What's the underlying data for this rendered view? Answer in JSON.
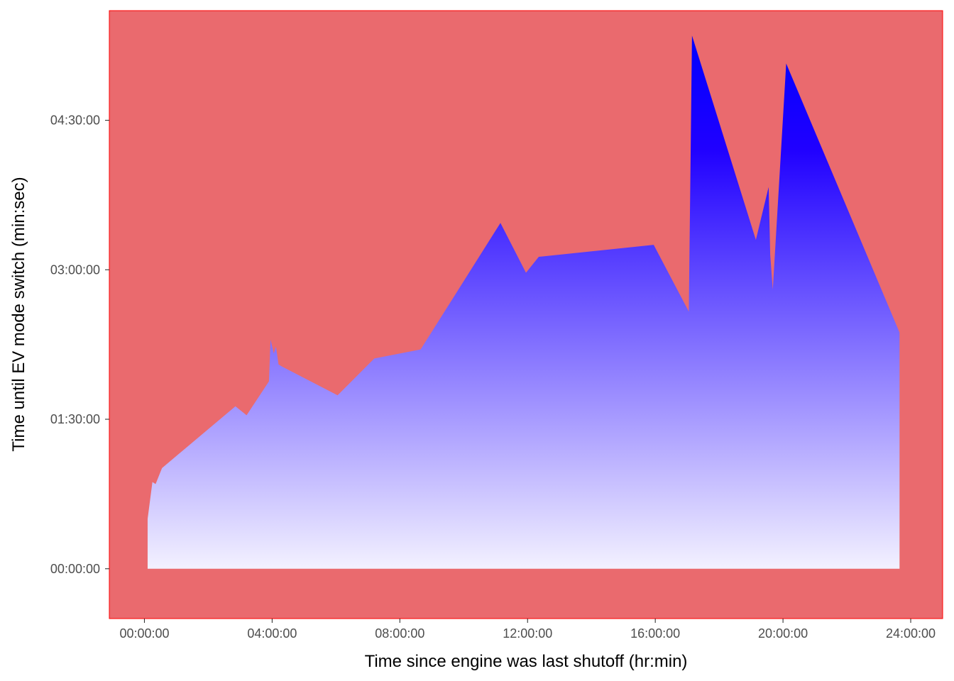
{
  "chart_data": {
    "type": "area",
    "title": "",
    "xlabel": "Time since engine was last shutoff (hr:min)",
    "ylabel": "Time until EV mode switch (min:sec)",
    "x_unit": "hours",
    "y_unit": "minutes",
    "xlim": [
      -1.1,
      25.0
    ],
    "ylim": [
      -0.5,
      5.6
    ],
    "x_ticks": [
      {
        "value": 0,
        "label": "00:00:00"
      },
      {
        "value": 4,
        "label": "04:00:00"
      },
      {
        "value": 8,
        "label": "08:00:00"
      },
      {
        "value": 12,
        "label": "12:00:00"
      },
      {
        "value": 16,
        "label": "16:00:00"
      },
      {
        "value": 20,
        "label": "20:00:00"
      },
      {
        "value": 24,
        "label": "24:00:00"
      }
    ],
    "y_ticks": [
      {
        "value": 0,
        "label": "00:00:00"
      },
      {
        "value": 1.5,
        "label": "01:30:00"
      },
      {
        "value": 3,
        "label": "03:00:00"
      },
      {
        "value": 4.5,
        "label": "04:30:00"
      }
    ],
    "grid": false,
    "series": [
      {
        "x": [
          0.1,
          0.25,
          0.35,
          0.55,
          2.85,
          3.2,
          3.9,
          3.95,
          4.05,
          4.12,
          4.2,
          4.3,
          6.05,
          7.2,
          8.65,
          11.15,
          11.95,
          12.35,
          15.95,
          17.05,
          17.15,
          19.15,
          19.55,
          19.6,
          19.68,
          20.1,
          23.65
        ],
        "y": [
          0.5,
          0.87,
          0.85,
          1.01,
          1.63,
          1.54,
          1.88,
          2.3,
          2.16,
          2.23,
          2.05,
          2.03,
          1.74,
          2.11,
          2.2,
          3.47,
          2.97,
          3.13,
          3.25,
          2.58,
          5.35,
          3.3,
          3.83,
          3.15,
          2.8,
          5.07,
          2.37
        ]
      }
    ],
    "colors": {
      "panel_background": "#EA6A6E",
      "panel_border": "#FF0000",
      "fill_top": "#0000FF",
      "fill_bottom": "#FFFFFF"
    }
  }
}
